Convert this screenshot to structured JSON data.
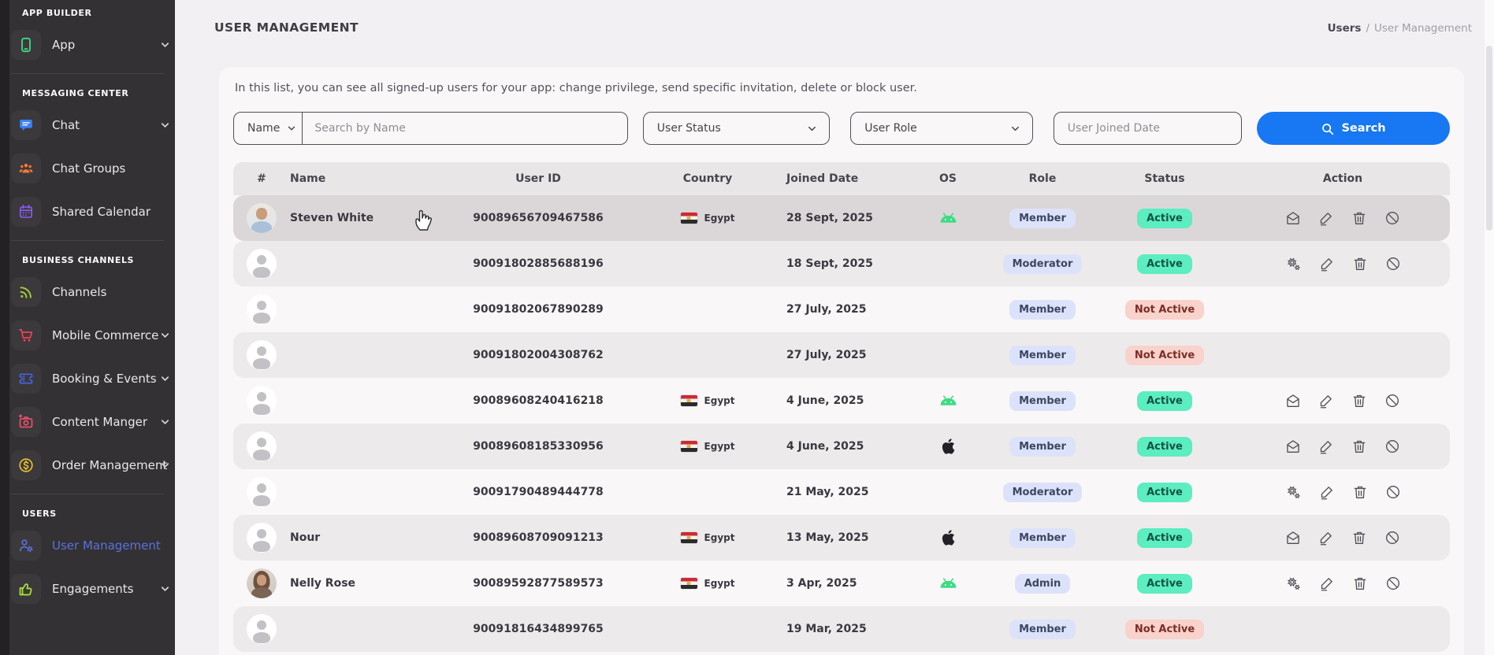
{
  "theme": {
    "sidebar_bg": "#333134",
    "accent_blue": "#1877f2",
    "active_item_blue": "#5a72dd",
    "role_badge_bg": "#dce2f9",
    "active_badge_bg": "#5cedc0",
    "inactive_badge_bg": "#f8d2cb",
    "android_green": "#3ddc84",
    "apple_black": "#232127"
  },
  "sidebar": {
    "sections": [
      {
        "label": "APP BUILDER",
        "items": [
          {
            "key": "app",
            "label": "App",
            "icon": "phone-icon",
            "color": "#3ddc84",
            "chevron": true
          }
        ]
      },
      {
        "label": "MESSAGING CENTER",
        "items": [
          {
            "key": "chat",
            "label": "Chat",
            "icon": "chat-icon",
            "color": "#3b82f6",
            "chevron": true
          },
          {
            "key": "chat-groups",
            "label": "Chat Groups",
            "icon": "group-icon",
            "color": "#f2792f",
            "chevron": false
          },
          {
            "key": "shared-calendar",
            "label": "Shared Calendar",
            "icon": "calendar-icon",
            "color": "#8b5cf6",
            "chevron": false
          }
        ]
      },
      {
        "label": "BUSINESS CHANNELS",
        "items": [
          {
            "key": "channels",
            "label": "Channels",
            "icon": "rss-icon",
            "color": "#a6ce39",
            "chevron": false
          },
          {
            "key": "mobile-commerce",
            "label": "Mobile Commerce",
            "icon": "cart-icon",
            "color": "#ee4352",
            "chevron": true
          },
          {
            "key": "booking-events",
            "label": "Booking & Events",
            "icon": "ticket-icon",
            "color": "#4663e8",
            "chevron": true
          },
          {
            "key": "content-manager",
            "label": "Content Manger",
            "icon": "camera-icon",
            "color": "#f4516c",
            "chevron": true
          },
          {
            "key": "order-management",
            "label": "Order Management",
            "icon": "dollar-icon",
            "color": "#eec32a",
            "chevron": true
          }
        ]
      },
      {
        "label": "USERS",
        "items": [
          {
            "key": "user-management",
            "label": "User Management",
            "icon": "user-gear-icon",
            "color": "#5a72dd",
            "chevron": false,
            "active": true
          },
          {
            "key": "engagements",
            "label": "Engagements",
            "icon": "thumbs-up-icon",
            "color": "#a8e63c",
            "chevron": true
          }
        ]
      }
    ]
  },
  "header": {
    "title": "USER MANAGEMENT",
    "breadcrumb": [
      "Users",
      "User Management"
    ]
  },
  "intro": "In this list, you can see all signed-up users for your app: change privilege, send specific invitation, delete or block user.",
  "filters": {
    "name_dropdown": "Name",
    "search_placeholder": "Search by Name",
    "status_placeholder": "User Status",
    "role_placeholder": "User Role",
    "joined_placeholder": "User Joined Date",
    "search_button": "Search"
  },
  "table": {
    "columns": [
      "#",
      "Name",
      "User ID",
      "Country",
      "Joined Date",
      "OS",
      "Role",
      "Status",
      "Action"
    ],
    "action_icon_names": [
      "mail-icon",
      "gears-icon",
      "pencil-icon",
      "trash-icon",
      "block-icon"
    ],
    "rows": [
      {
        "avatar": "photo-man",
        "name": "Steven White",
        "user_id": "90089656709467586",
        "country": "Egypt",
        "joined": "28 Sept, 2025",
        "os": "android",
        "role": "Member",
        "status": "Active",
        "actions": "mail",
        "hovered": true
      },
      {
        "avatar": "placeholder",
        "name": "",
        "user_id": "90091802885688196",
        "country": "",
        "joined": "18 Sept, 2025",
        "os": "",
        "role": "Moderator",
        "status": "Active",
        "actions": "gear"
      },
      {
        "avatar": "placeholder",
        "name": "",
        "user_id": "90091802067890289",
        "country": "",
        "joined": "27 July, 2025",
        "os": "",
        "role": "Member",
        "status": "Not Active",
        "actions": "none"
      },
      {
        "avatar": "placeholder",
        "name": "",
        "user_id": "90091802004308762",
        "country": "",
        "joined": "27 July, 2025",
        "os": "",
        "role": "Member",
        "status": "Not Active",
        "actions": "none"
      },
      {
        "avatar": "placeholder",
        "name": "",
        "user_id": "90089608240416218",
        "country": "Egypt",
        "joined": "4 June, 2025",
        "os": "android",
        "role": "Member",
        "status": "Active",
        "actions": "mail"
      },
      {
        "avatar": "placeholder",
        "name": "",
        "user_id": "90089608185330956",
        "country": "Egypt",
        "joined": "4 June, 2025",
        "os": "apple",
        "role": "Member",
        "status": "Active",
        "actions": "mail"
      },
      {
        "avatar": "placeholder",
        "name": "",
        "user_id": "90091790489444778",
        "country": "",
        "joined": "21 May, 2025",
        "os": "",
        "role": "Moderator",
        "status": "Active",
        "actions": "gear"
      },
      {
        "avatar": "placeholder",
        "name": "Nour",
        "user_id": "90089608709091213",
        "country": "Egypt",
        "joined": "13 May, 2025",
        "os": "apple",
        "role": "Member",
        "status": "Active",
        "actions": "mail"
      },
      {
        "avatar": "photo-woman",
        "name": "Nelly Rose",
        "user_id": "90089592877589573",
        "country": "Egypt",
        "joined": "3 Apr, 2025",
        "os": "android",
        "role": "Admin",
        "status": "Active",
        "actions": "gear"
      },
      {
        "avatar": "placeholder",
        "name": "",
        "user_id": "90091816434899765",
        "country": "",
        "joined": "19 Mar, 2025",
        "os": "",
        "role": "Member",
        "status": "Not Active",
        "actions": "none"
      },
      {
        "avatar": "placeholder",
        "partial": true
      }
    ]
  }
}
